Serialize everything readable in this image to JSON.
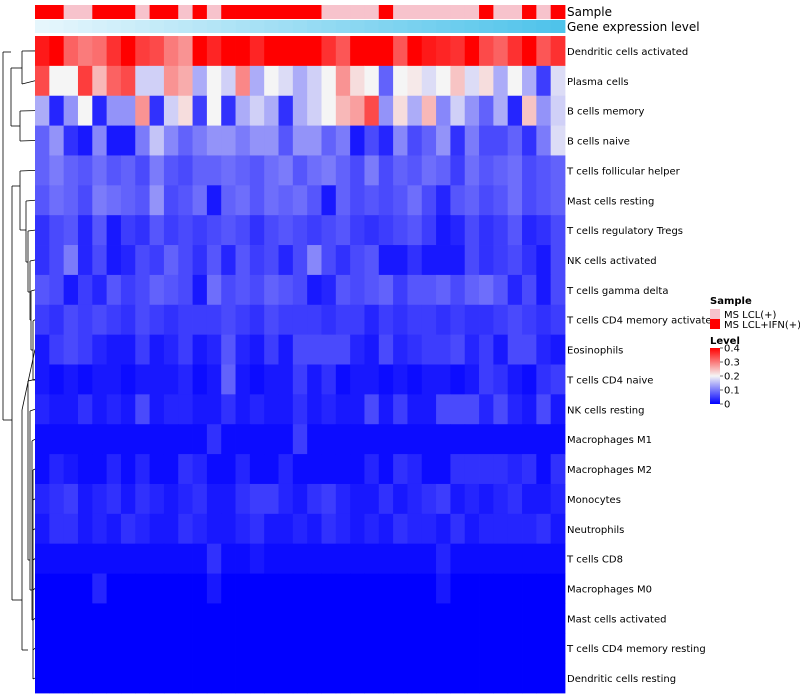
{
  "chart_data": {
    "type": "heatmap",
    "annotation_labels": {
      "sample": "Sample",
      "gene_expression": "Gene expression level"
    },
    "legend": {
      "sample_title": "Sample",
      "sample_entries": [
        {
          "label": "MS LCL(+)",
          "color": "#f7c3cc"
        },
        {
          "label": "MS LCL+IFN(+)",
          "color": "#ff0000"
        }
      ],
      "level_title": "Level",
      "level_ticks": [
        "0.4",
        "0.3",
        "0.2",
        "0.1",
        "0"
      ],
      "level_tick_values": [
        0.4,
        0.3,
        0.2,
        0.1,
        0
      ],
      "range": [
        0,
        0.4
      ]
    },
    "colors": {
      "low": "#0000ff",
      "mid": "#f5f5f5",
      "high": "#ff0000",
      "sample_ms_lcl": "#f7c3cc",
      "sample_ms_lcl_ifn": "#ff0000",
      "gene_light": "#e6f6fc",
      "gene_dark": "#4fc3ea"
    },
    "sample_groups": [
      "IFN",
      "IFN",
      "LCL",
      "LCL",
      "IFN",
      "IFN",
      "IFN",
      "LCL",
      "IFN",
      "IFN",
      "LCL",
      "IFN",
      "LCL",
      "IFN",
      "IFN",
      "IFN",
      "IFN",
      "IFN",
      "IFN",
      "IFN",
      "LCL",
      "LCL",
      "LCL",
      "LCL",
      "IFN",
      "LCL",
      "LCL",
      "LCL",
      "LCL",
      "LCL",
      "LCL",
      "IFN",
      "LCL",
      "LCL",
      "IFN",
      "LCL",
      "IFN"
    ],
    "rows": [
      "Dendritic cells activated",
      "Plasma cells",
      "B cells memory",
      "B cells naive",
      "T cells follicular helper",
      "Mast cells resting",
      "T cells regulatory  Tregs",
      "NK cells activated",
      "T cells gamma delta",
      "T cells CD4 memory activated",
      "Eosinophils",
      "T cells CD4 naive",
      "NK cells resting",
      "Macrophages M1",
      "Macrophages M2",
      "Monocytes",
      "Neutrophils",
      "T cells CD8",
      "Macrophages M0",
      "Mast cells activated",
      "T cells CD4 memory resting",
      "Dendritic cells resting"
    ],
    "values": [
      [
        0.38,
        0.4,
        0.32,
        0.3,
        0.31,
        0.36,
        0.4,
        0.35,
        0.34,
        0.3,
        0.28,
        0.4,
        0.37,
        0.4,
        0.4,
        0.37,
        0.4,
        0.4,
        0.4,
        0.4,
        0.36,
        0.33,
        0.4,
        0.4,
        0.4,
        0.33,
        0.4,
        0.38,
        0.37,
        0.36,
        0.4,
        0.34,
        0.32,
        0.36,
        0.4,
        0.33,
        0.36
      ],
      [
        0.34,
        0.2,
        0.2,
        0.35,
        0.25,
        0.32,
        0.34,
        0.17,
        0.17,
        0.28,
        0.26,
        0.14,
        0.2,
        0.17,
        0.29,
        0.14,
        0.2,
        0.18,
        0.14,
        0.17,
        0.2,
        0.28,
        0.22,
        0.2,
        0.08,
        0.2,
        0.21,
        0.18,
        0.2,
        0.24,
        0.18,
        0.22,
        0.14,
        0.2,
        0.14,
        0.05,
        0.18
      ],
      [
        0.14,
        0.03,
        0.12,
        0.2,
        0.03,
        0.12,
        0.12,
        0.28,
        0.04,
        0.17,
        0.22,
        0.05,
        0.2,
        0.04,
        0.14,
        0.17,
        0.14,
        0.04,
        0.14,
        0.17,
        0.2,
        0.25,
        0.27,
        0.34,
        0.12,
        0.22,
        0.14,
        0.25,
        0.11,
        0.17,
        0.12,
        0.08,
        0.14,
        0.03,
        0.24,
        0.12,
        0.17
      ],
      [
        0.08,
        0.12,
        0.04,
        0.02,
        0.11,
        0.02,
        0.02,
        0.1,
        0.16,
        0.11,
        0.08,
        0.1,
        0.12,
        0.12,
        0.1,
        0.12,
        0.12,
        0.07,
        0.12,
        0.12,
        0.08,
        0.1,
        0.02,
        0.06,
        0.03,
        0.11,
        0.06,
        0.08,
        0.12,
        0.04,
        0.1,
        0.06,
        0.06,
        0.08,
        0.04,
        0.1,
        0.18
      ],
      [
        0.08,
        0.1,
        0.08,
        0.07,
        0.09,
        0.07,
        0.08,
        0.06,
        0.1,
        0.07,
        0.06,
        0.08,
        0.08,
        0.09,
        0.08,
        0.07,
        0.09,
        0.1,
        0.07,
        0.09,
        0.1,
        0.08,
        0.06,
        0.1,
        0.06,
        0.08,
        0.07,
        0.09,
        0.08,
        0.05,
        0.09,
        0.07,
        0.08,
        0.09,
        0.06,
        0.07,
        0.08
      ],
      [
        0.07,
        0.09,
        0.08,
        0.06,
        0.1,
        0.09,
        0.08,
        0.07,
        0.12,
        0.06,
        0.07,
        0.09,
        0.02,
        0.08,
        0.09,
        0.07,
        0.09,
        0.08,
        0.09,
        0.07,
        0.02,
        0.08,
        0.06,
        0.07,
        0.06,
        0.07,
        0.09,
        0.06,
        0.03,
        0.07,
        0.08,
        0.06,
        0.07,
        0.09,
        0.06,
        0.07,
        0.08
      ],
      [
        0.04,
        0.06,
        0.07,
        0.03,
        0.07,
        0.02,
        0.05,
        0.04,
        0.07,
        0.05,
        0.06,
        0.05,
        0.06,
        0.07,
        0.06,
        0.04,
        0.06,
        0.07,
        0.06,
        0.05,
        0.06,
        0.07,
        0.05,
        0.04,
        0.05,
        0.06,
        0.07,
        0.05,
        0.02,
        0.03,
        0.06,
        0.04,
        0.05,
        0.07,
        0.03,
        0.04,
        0.06
      ],
      [
        0.04,
        0.06,
        0.1,
        0.03,
        0.06,
        0.02,
        0.03,
        0.06,
        0.05,
        0.08,
        0.06,
        0.04,
        0.07,
        0.03,
        0.07,
        0.05,
        0.06,
        0.03,
        0.06,
        0.11,
        0.06,
        0.04,
        0.06,
        0.07,
        0.02,
        0.02,
        0.04,
        0.02,
        0.02,
        0.02,
        0.06,
        0.04,
        0.05,
        0.06,
        0.04,
        0.02,
        0.06
      ],
      [
        0.07,
        0.06,
        0.02,
        0.05,
        0.03,
        0.07,
        0.05,
        0.06,
        0.08,
        0.07,
        0.06,
        0.02,
        0.09,
        0.06,
        0.07,
        0.06,
        0.08,
        0.07,
        0.06,
        0.02,
        0.03,
        0.07,
        0.06,
        0.07,
        0.08,
        0.05,
        0.07,
        0.07,
        0.08,
        0.06,
        0.08,
        0.09,
        0.07,
        0.03,
        0.06,
        0.02,
        0.06
      ],
      [
        0.05,
        0.04,
        0.06,
        0.05,
        0.06,
        0.05,
        0.04,
        0.06,
        0.05,
        0.04,
        0.05,
        0.05,
        0.05,
        0.06,
        0.05,
        0.04,
        0.06,
        0.05,
        0.05,
        0.05,
        0.04,
        0.05,
        0.05,
        0.03,
        0.05,
        0.04,
        0.05,
        0.05,
        0.04,
        0.05,
        0.04,
        0.04,
        0.05,
        0.06,
        0.05,
        0.04,
        0.05
      ],
      [
        0.02,
        0.05,
        0.06,
        0.05,
        0.03,
        0.02,
        0.02,
        0.05,
        0.02,
        0.03,
        0.05,
        0.02,
        0.03,
        0.07,
        0.03,
        0.02,
        0.05,
        0.02,
        0.06,
        0.06,
        0.06,
        0.06,
        0.03,
        0.02,
        0.06,
        0.03,
        0.04,
        0.05,
        0.05,
        0.06,
        0.03,
        0.05,
        0.02,
        0.06,
        0.06,
        0.03,
        0.02
      ],
      [
        0.02,
        0.01,
        0.02,
        0.01,
        0.02,
        0.02,
        0.01,
        0.02,
        0.02,
        0.02,
        0.03,
        0.01,
        0.02,
        0.08,
        0.02,
        0.01,
        0.02,
        0.02,
        0.05,
        0.02,
        0.04,
        0.01,
        0.02,
        0.02,
        0.01,
        0.02,
        0.01,
        0.02,
        0.02,
        0.01,
        0.02,
        0.05,
        0.04,
        0.02,
        0.01,
        0.04,
        0.05
      ],
      [
        0.03,
        0.02,
        0.02,
        0.04,
        0.02,
        0.03,
        0.02,
        0.06,
        0.02,
        0.03,
        0.03,
        0.02,
        0.02,
        0.04,
        0.02,
        0.03,
        0.02,
        0.02,
        0.04,
        0.02,
        0.03,
        0.02,
        0.02,
        0.06,
        0.02,
        0.05,
        0.02,
        0.02,
        0.06,
        0.06,
        0.06,
        0.03,
        0.06,
        0.03,
        0.02,
        0.06,
        0.02
      ],
      [
        0.01,
        0.01,
        0.01,
        0.01,
        0.01,
        0.01,
        0.01,
        0.01,
        0.01,
        0.01,
        0.01,
        0.01,
        0.04,
        0.01,
        0.01,
        0.01,
        0.01,
        0.01,
        0.05,
        0.01,
        0.01,
        0.01,
        0.01,
        0.01,
        0.01,
        0.01,
        0.01,
        0.01,
        0.01,
        0.01,
        0.01,
        0.01,
        0.01,
        0.01,
        0.01,
        0.01,
        0.01
      ],
      [
        0.01,
        0.03,
        0.02,
        0.01,
        0.01,
        0.03,
        0.01,
        0.03,
        0.01,
        0.01,
        0.04,
        0.03,
        0.01,
        0.01,
        0.03,
        0.01,
        0.01,
        0.03,
        0.01,
        0.01,
        0.01,
        0.01,
        0.01,
        0.03,
        0.01,
        0.04,
        0.03,
        0.01,
        0.01,
        0.04,
        0.04,
        0.04,
        0.04,
        0.03,
        0.04,
        0.01,
        0.04
      ],
      [
        0.03,
        0.04,
        0.05,
        0.02,
        0.03,
        0.04,
        0.02,
        0.04,
        0.03,
        0.02,
        0.03,
        0.04,
        0.02,
        0.02,
        0.04,
        0.05,
        0.05,
        0.03,
        0.02,
        0.04,
        0.05,
        0.03,
        0.02,
        0.02,
        0.04,
        0.02,
        0.03,
        0.04,
        0.05,
        0.02,
        0.03,
        0.02,
        0.03,
        0.04,
        0.02,
        0.02,
        0.03
      ],
      [
        0.02,
        0.04,
        0.04,
        0.02,
        0.03,
        0.02,
        0.04,
        0.03,
        0.02,
        0.02,
        0.04,
        0.03,
        0.02,
        0.02,
        0.03,
        0.04,
        0.02,
        0.02,
        0.03,
        0.02,
        0.04,
        0.03,
        0.02,
        0.03,
        0.02,
        0.04,
        0.03,
        0.03,
        0.02,
        0.04,
        0.02,
        0.03,
        0.03,
        0.03,
        0.03,
        0.04,
        0.02
      ],
      [
        0.01,
        0.01,
        0.01,
        0.01,
        0.01,
        0.01,
        0.01,
        0.01,
        0.01,
        0.01,
        0.01,
        0.01,
        0.04,
        0.01,
        0.01,
        0.02,
        0.01,
        0.01,
        0.01,
        0.01,
        0.01,
        0.01,
        0.01,
        0.01,
        0.01,
        0.01,
        0.01,
        0.01,
        0.03,
        0.01,
        0.01,
        0.01,
        0.01,
        0.01,
        0.01,
        0.01,
        0.01
      ],
      [
        0.0,
        0.0,
        0.0,
        0.0,
        0.03,
        0.0,
        0.0,
        0.0,
        0.0,
        0.0,
        0.0,
        0.0,
        0.02,
        0.0,
        0.0,
        0.0,
        0.0,
        0.0,
        0.0,
        0.0,
        0.0,
        0.0,
        0.0,
        0.0,
        0.0,
        0.0,
        0.0,
        0.0,
        0.02,
        0.0,
        0.0,
        0.0,
        0.0,
        0.0,
        0.0,
        0.0,
        0.0
      ],
      [
        0.0,
        0.0,
        0.0,
        0.0,
        0.0,
        0.0,
        0.0,
        0.0,
        0.0,
        0.0,
        0.0,
        0.0,
        0.0,
        0.0,
        0.0,
        0.0,
        0.0,
        0.0,
        0.0,
        0.0,
        0.0,
        0.0,
        0.0,
        0.0,
        0.0,
        0.0,
        0.0,
        0.0,
        0.0,
        0.0,
        0.0,
        0.0,
        0.0,
        0.0,
        0.0,
        0.0,
        0.0
      ],
      [
        0.0,
        0.0,
        0.0,
        0.0,
        0.0,
        0.0,
        0.0,
        0.0,
        0.0,
        0.0,
        0.0,
        0.0,
        0.0,
        0.0,
        0.0,
        0.0,
        0.0,
        0.0,
        0.0,
        0.0,
        0.0,
        0.0,
        0.0,
        0.0,
        0.0,
        0.0,
        0.0,
        0.0,
        0.0,
        0.0,
        0.0,
        0.0,
        0.0,
        0.0,
        0.0,
        0.0,
        0.0
      ],
      [
        0.0,
        0.0,
        0.0,
        0.0,
        0.0,
        0.0,
        0.0,
        0.0,
        0.0,
        0.0,
        0.0,
        0.0,
        0.0,
        0.0,
        0.0,
        0.0,
        0.0,
        0.0,
        0.0,
        0.0,
        0.0,
        0.0,
        0.0,
        0.0,
        0.0,
        0.0,
        0.0,
        0.0,
        0.0,
        0.0,
        0.0,
        0.0,
        0.0,
        0.0,
        0.0,
        0.0,
        0.0
      ]
    ]
  }
}
